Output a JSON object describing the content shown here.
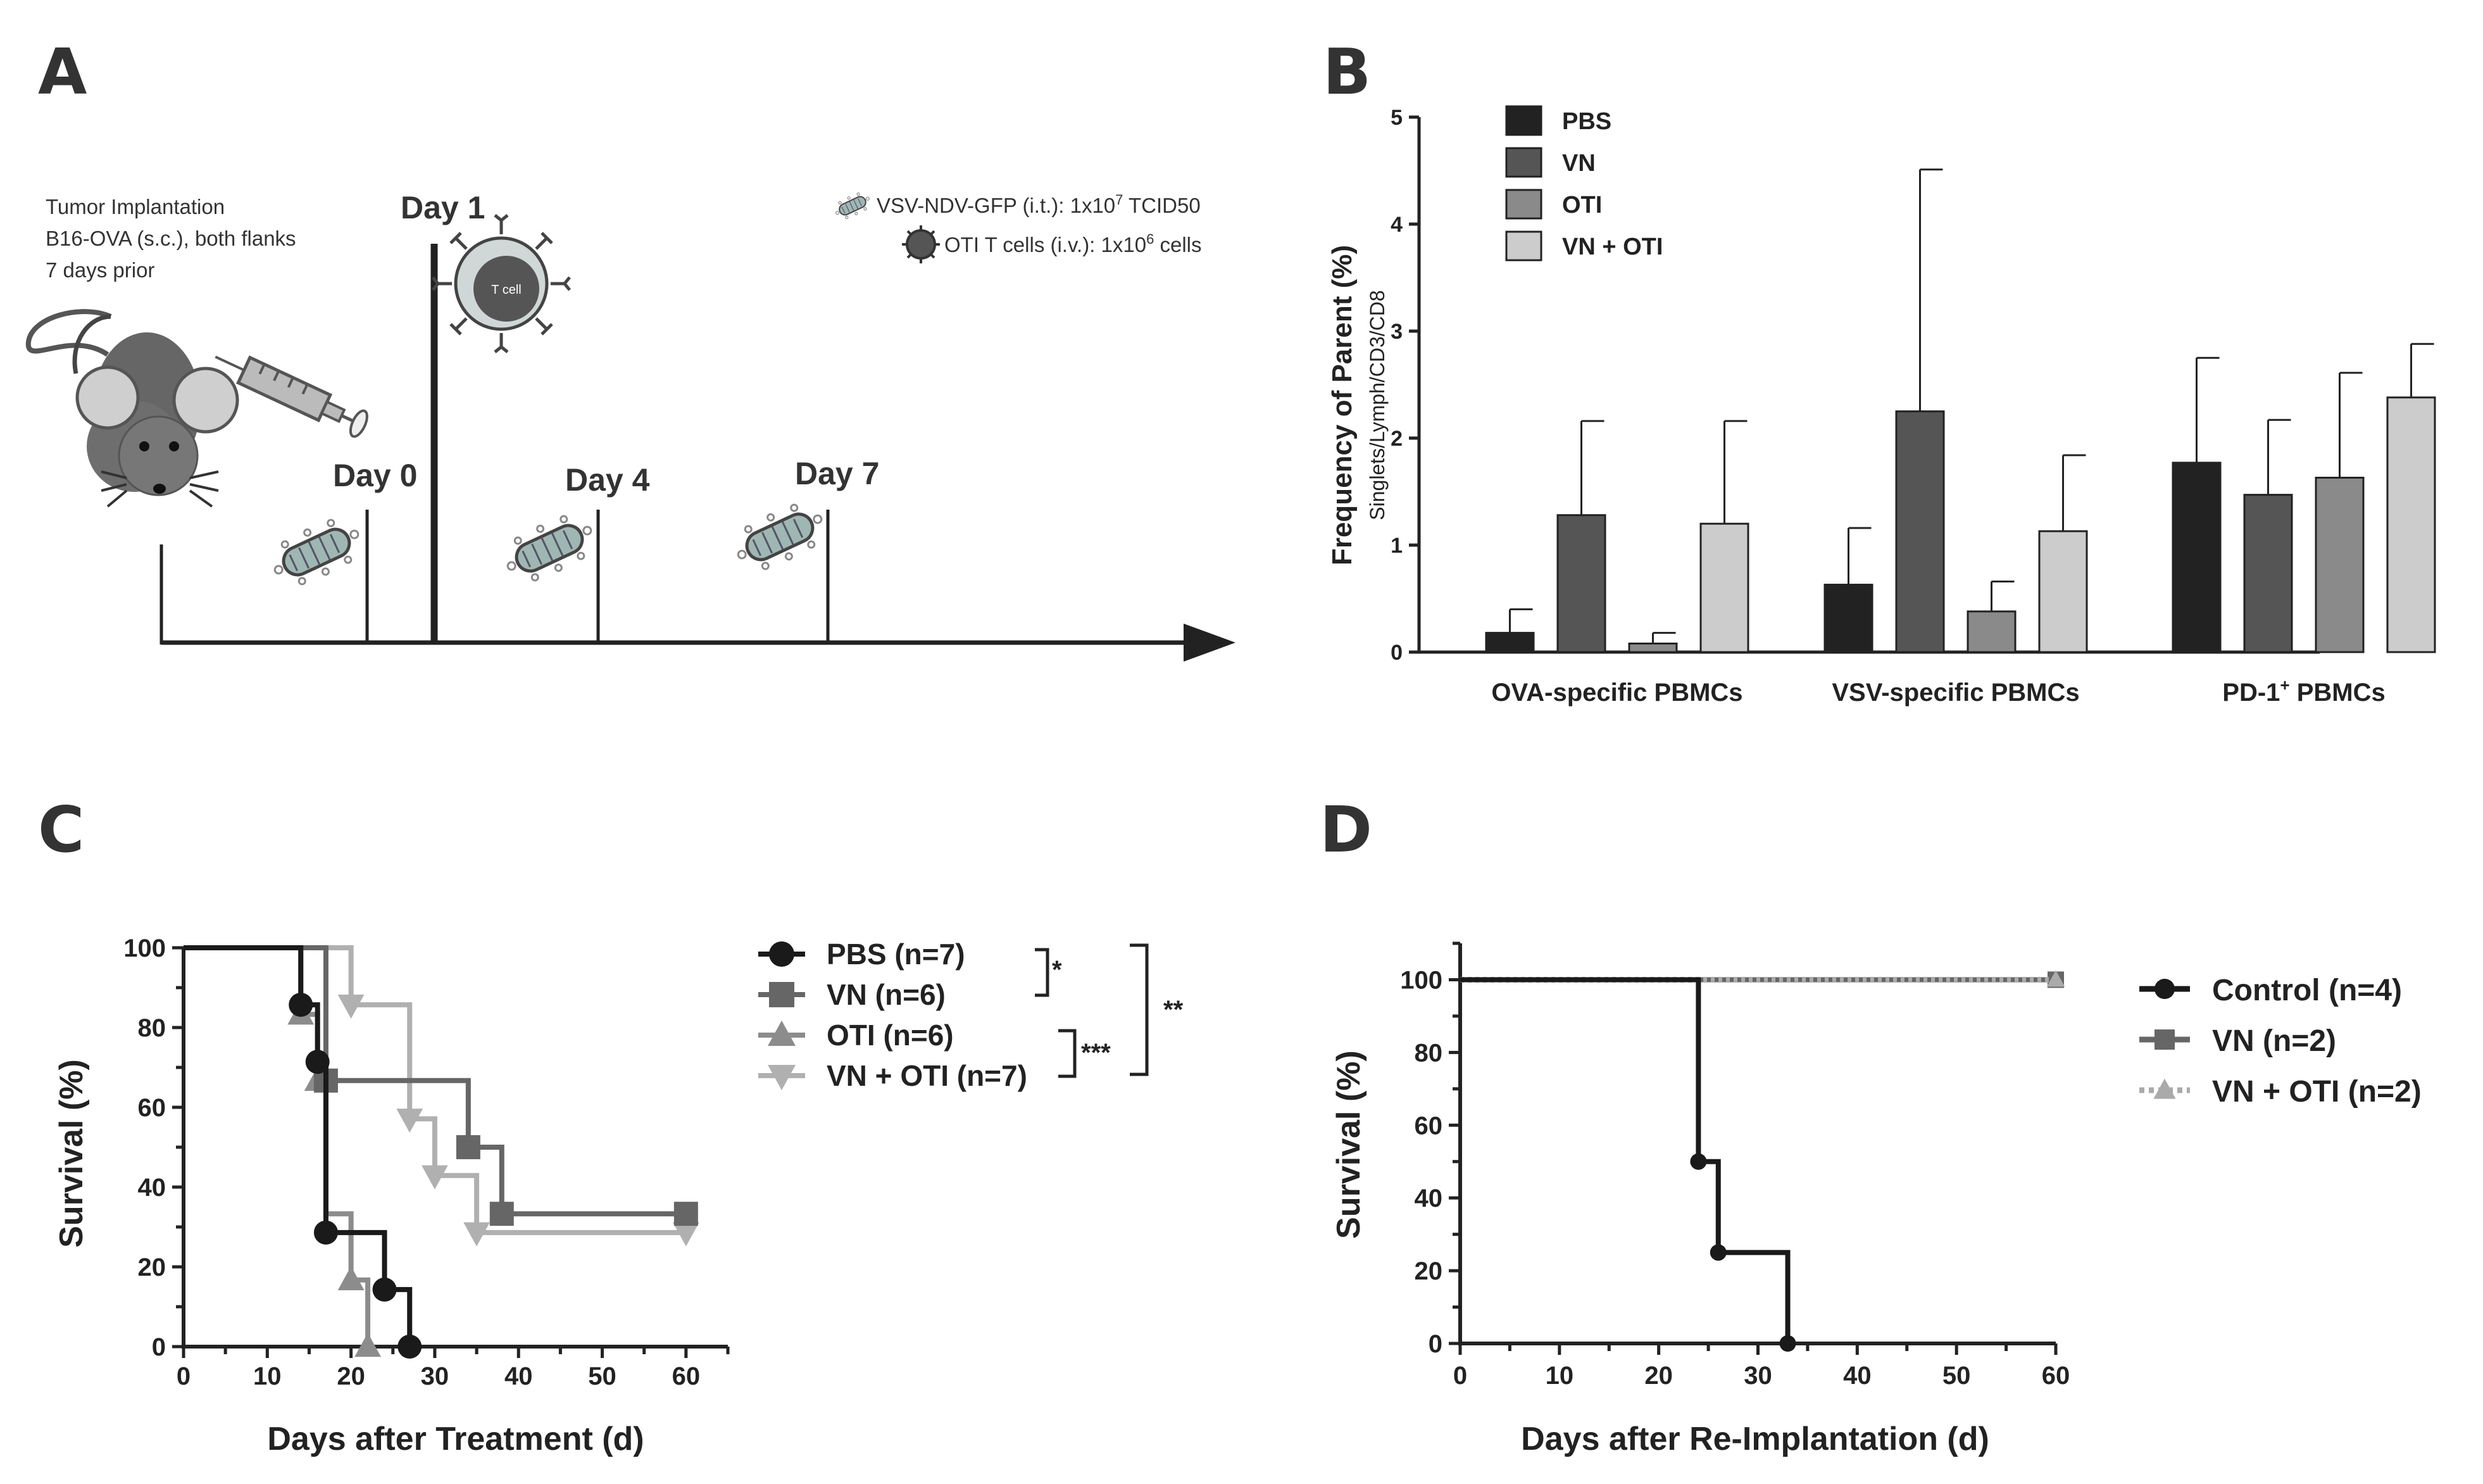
{
  "panels": {
    "a": "A",
    "b": "B",
    "c": "C",
    "d": "D"
  },
  "schematic": {
    "implant_lines": [
      "Tumor Implantation",
      "B16-OVA (s.c.), both flanks",
      "7 days prior"
    ],
    "days": [
      "Day 0",
      "Day 1",
      "Day 4",
      "Day 7"
    ],
    "tcell_label": "T cell",
    "legend": {
      "virus": "VSV-NDV-GFP (i.t.): 1x10",
      "virus_exp": "7",
      "virus_unit": " TCID50",
      "tcells": "OTI T cells (i.v.): 1x10",
      "tcells_exp": "6",
      "tcells_unit": " cells"
    }
  },
  "chart_data": [
    {
      "id": "B",
      "type": "bar",
      "ylabel": "Frequency of Parent (%)",
      "ylabel_sub": "Singlets/Lymph/CD3/CD8",
      "ylim": [
        0,
        5
      ],
      "yticks": [
        0,
        1,
        2,
        3,
        4,
        5
      ],
      "categories": [
        "OVA-specific PBMCs",
        "VSV-specific PBMCs",
        "PD-1"
      ],
      "category_superscript": [
        "",
        "",
        "+"
      ],
      "category_suffix": [
        "",
        "",
        " PBMCs"
      ],
      "series": [
        {
          "name": "PBS",
          "color": "#222222",
          "values": [
            0.18,
            0.63,
            1.77
          ],
          "errors": [
            0.22,
            0.53,
            0.98
          ]
        },
        {
          "name": "VN",
          "color": "#555555",
          "values": [
            1.28,
            2.25,
            1.47
          ],
          "errors": [
            0.88,
            2.26,
            0.7
          ]
        },
        {
          "name": "OTI",
          "color": "#8a8a8a",
          "values": [
            0.08,
            0.38,
            1.63
          ],
          "errors": [
            0.1,
            0.28,
            0.98
          ]
        },
        {
          "name": "VN + OTI",
          "color": "#cccccc",
          "values": [
            1.2,
            1.13,
            2.38
          ],
          "errors": [
            0.96,
            0.71,
            0.5
          ]
        }
      ]
    },
    {
      "id": "C",
      "type": "line",
      "xlabel": "Days after Treatment (d)",
      "ylabel": "Survival (%)",
      "xlim": [
        0,
        65
      ],
      "ylim": [
        0,
        100
      ],
      "xticks": [
        0,
        10,
        20,
        30,
        40,
        50,
        60
      ],
      "yticks": [
        0,
        20,
        40,
        60,
        80,
        100
      ],
      "series": [
        {
          "name": "PBS (n=7)",
          "color": "#1a1a1a",
          "marker": "circle",
          "steps": [
            [
              0,
              100
            ],
            [
              14,
              85.7
            ],
            [
              16,
              71.4
            ],
            [
              17,
              28.6
            ],
            [
              24,
              14.3
            ],
            [
              27,
              0
            ]
          ],
          "markers": [
            [
              14,
              85.7
            ],
            [
              16,
              71.4
            ],
            [
              17,
              28.6
            ],
            [
              24,
              14.3
            ],
            [
              27,
              0
            ]
          ]
        },
        {
          "name": "VN (n=6)",
          "color": "#666666",
          "marker": "square",
          "steps": [
            [
              0,
              100
            ],
            [
              17,
              66.7
            ],
            [
              34,
              50
            ],
            [
              38,
              33.3
            ],
            [
              60,
              33.3
            ]
          ],
          "markers": [
            [
              17,
              66.7
            ],
            [
              34,
              50
            ],
            [
              38,
              33.3
            ],
            [
              60,
              33.3
            ]
          ]
        },
        {
          "name": "OTI (n=6)",
          "color": "#8c8c8c",
          "marker": "triangle-up",
          "steps": [
            [
              0,
              100
            ],
            [
              14,
              83.3
            ],
            [
              16,
              66.7
            ],
            [
              17,
              33.3
            ],
            [
              20,
              16.7
            ],
            [
              22,
              0
            ]
          ],
          "markers": [
            [
              14,
              83.3
            ],
            [
              16,
              66.7
            ],
            [
              20,
              16.7
            ],
            [
              22,
              0
            ]
          ]
        },
        {
          "name": "VN + OTI (n=7)",
          "color": "#b0b0b0",
          "marker": "triangle-down",
          "steps": [
            [
              0,
              100
            ],
            [
              20,
              85.7
            ],
            [
              27,
              57.1
            ],
            [
              30,
              42.9
            ],
            [
              35,
              28.6
            ],
            [
              60,
              28.6
            ]
          ],
          "markers": [
            [
              20,
              85.7
            ],
            [
              27,
              57.1
            ],
            [
              30,
              42.9
            ],
            [
              35,
              28.6
            ],
            [
              60,
              28.6
            ]
          ]
        }
      ],
      "significance": [
        "*",
        "***",
        "**"
      ]
    },
    {
      "id": "D",
      "type": "line",
      "xlabel": "Days after Re-Implantation (d)",
      "ylabel": "Survival (%)",
      "xlim": [
        0,
        60
      ],
      "ylim": [
        0,
        110
      ],
      "xticks": [
        0,
        10,
        20,
        30,
        40,
        50,
        60
      ],
      "yticks": [
        0,
        20,
        40,
        60,
        80,
        100
      ],
      "series": [
        {
          "name": "Control (n=4)",
          "color": "#1a1a1a",
          "marker": "circle",
          "steps": [
            [
              0,
              100
            ],
            [
              24,
              50
            ],
            [
              26,
              25
            ],
            [
              33,
              0
            ]
          ],
          "markers": [
            [
              24,
              50
            ],
            [
              26,
              25
            ],
            [
              33,
              0
            ]
          ]
        },
        {
          "name": "VN (n=2)",
          "color": "#666666",
          "marker": "square",
          "steps": [
            [
              0,
              100
            ],
            [
              60,
              100
            ]
          ],
          "markers": [
            [
              60,
              100
            ]
          ]
        },
        {
          "name": "VN + OTI (n=2)",
          "color": "#aaaaaa",
          "marker": "triangle-up",
          "dashed": true,
          "steps": [
            [
              0,
              100
            ],
            [
              60,
              100
            ]
          ],
          "markers": [
            [
              60,
              100
            ]
          ]
        }
      ]
    }
  ]
}
